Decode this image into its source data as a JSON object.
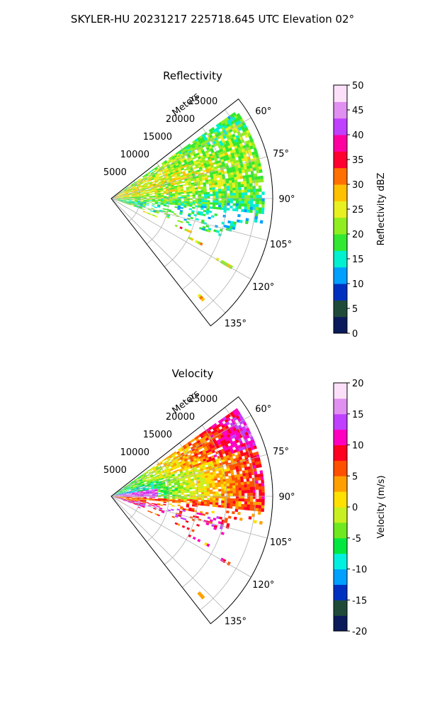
{
  "figure_title": "SKYLER-HU  20231217  225718.645 UTC Elevation 02°",
  "colors": {
    "background": "#ffffff",
    "grid": "#b0b0b0",
    "axis": "#000000"
  },
  "chart_data": [
    {
      "type": "heatmap",
      "projection": "polar-sector",
      "title": "Reflectivity",
      "range_label": "Meters",
      "range_ticks": [
        5000,
        10000,
        15000,
        20000,
        25000
      ],
      "range_tick_labels": [
        "5000",
        "10000",
        "15000",
        "20000",
        "25000"
      ],
      "range_max": 28000,
      "azimuth_range_deg": [
        52,
        142
      ],
      "azimuth_ticks_deg": [
        60,
        75,
        90,
        105,
        120,
        135
      ],
      "azimuth_tick_labels": [
        "60°",
        "75°",
        "90°",
        "105°",
        "120°",
        "135°"
      ],
      "grid": true,
      "colorbar": {
        "label": "Reflectivity dBZ",
        "min": 0,
        "max": 50,
        "ticks": [
          0,
          5,
          10,
          15,
          20,
          25,
          30,
          35,
          40,
          45,
          50
        ],
        "tick_labels": [
          "0",
          "5",
          "10",
          "15",
          "20",
          "25",
          "30",
          "35",
          "40",
          "45",
          "50"
        ],
        "colormap": [
          "#0a1a5a",
          "#1f4a3a",
          "#0030c0",
          "#00a0ff",
          "#00f0d0",
          "#33e830",
          "#90ee20",
          "#e8f020",
          "#ffc000",
          "#ff7000",
          "#ff0030",
          "#ff00a0",
          "#c040ff",
          "#e090f0",
          "#fce0fa"
        ]
      }
    },
    {
      "type": "heatmap",
      "projection": "polar-sector",
      "title": "Velocity",
      "range_label": "Meters",
      "range_ticks": [
        5000,
        10000,
        15000,
        20000,
        25000
      ],
      "range_tick_labels": [
        "5000",
        "10000",
        "15000",
        "20000",
        "25000"
      ],
      "range_max": 28000,
      "azimuth_range_deg": [
        52,
        142
      ],
      "azimuth_ticks_deg": [
        60,
        75,
        90,
        105,
        120,
        135
      ],
      "azimuth_tick_labels": [
        "60°",
        "75°",
        "90°",
        "105°",
        "120°",
        "135°"
      ],
      "grid": true,
      "colorbar": {
        "label": "Velocity (m/s)",
        "min": -20,
        "max": 20,
        "ticks": [
          -20,
          -15,
          -10,
          -5,
          0,
          5,
          10,
          15,
          20
        ],
        "tick_labels": [
          "-20",
          "-15",
          "-10",
          "-5",
          "0",
          "5",
          "10",
          "15",
          "20"
        ],
        "colormap": [
          "#0a1a5a",
          "#1f4a3a",
          "#0030c0",
          "#00a0ff",
          "#00f0e0",
          "#00e840",
          "#70e820",
          "#c8f020",
          "#ffe000",
          "#ffa000",
          "#ff5000",
          "#ff0020",
          "#ff00c0",
          "#c040ff",
          "#e090f0",
          "#fce0fa"
        ]
      }
    }
  ]
}
